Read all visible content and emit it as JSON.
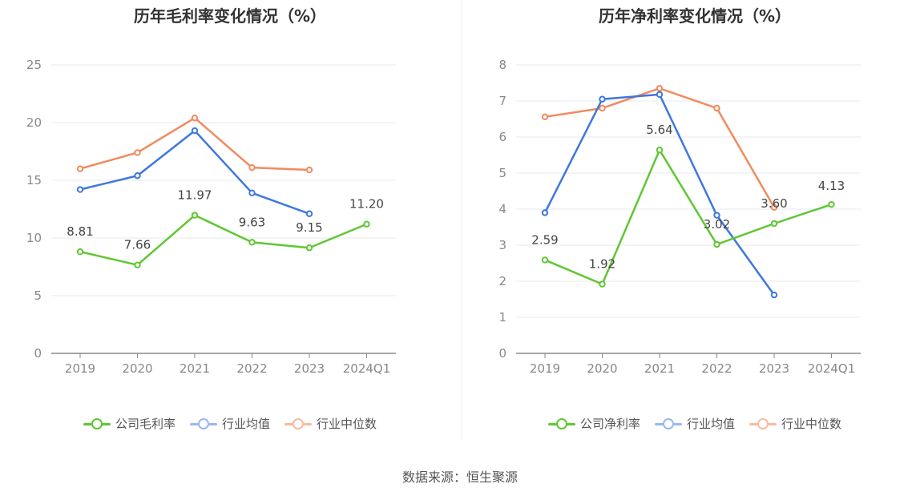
{
  "source": "数据来源：恒生聚源",
  "chart_data": [
    {
      "type": "line",
      "title": "历年毛利率变化情况（%）",
      "categories": [
        "2019",
        "2020",
        "2021",
        "2022",
        "2023",
        "2024Q1"
      ],
      "ylim": [
        0,
        25
      ],
      "yticks": [
        0,
        5,
        10,
        15,
        20,
        25
      ],
      "grid": true,
      "legend": "bottom",
      "series": [
        {
          "name": "公司毛利率",
          "color": "#5fc732",
          "values": [
            8.81,
            7.66,
            11.97,
            9.63,
            9.15,
            11.2
          ],
          "labels": [
            "8.81",
            "7.66",
            "11.97",
            "9.63",
            "9.15",
            "11.20"
          ]
        },
        {
          "name": "行业均值",
          "color": "#3f77e0",
          "values": [
            14.2,
            15.4,
            19.3,
            13.9,
            12.1,
            null
          ]
        },
        {
          "name": "行业中位数",
          "color": "#f28a5e",
          "values": [
            16.0,
            17.4,
            20.4,
            16.1,
            15.9,
            null
          ]
        }
      ]
    },
    {
      "type": "line",
      "title": "历年净利率变化情况（%）",
      "categories": [
        "2019",
        "2020",
        "2021",
        "2022",
        "2023",
        "2024Q1"
      ],
      "ylim": [
        0,
        8
      ],
      "yticks": [
        0,
        1,
        2,
        3,
        4,
        5,
        6,
        7,
        8
      ],
      "grid": true,
      "legend": "bottom",
      "series": [
        {
          "name": "公司净利率",
          "color": "#5fc732",
          "values": [
            2.59,
            1.92,
            5.64,
            3.02,
            3.6,
            4.13
          ],
          "labels": [
            "2.59",
            "1.92",
            "5.64",
            "3.02",
            "3.60",
            "4.13"
          ]
        },
        {
          "name": "行业均值",
          "color": "#3f77e0",
          "values": [
            3.9,
            7.05,
            7.18,
            3.83,
            1.62,
            null
          ]
        },
        {
          "name": "行业中位数",
          "color": "#f28a5e",
          "values": [
            6.56,
            6.8,
            7.35,
            6.8,
            4.05,
            null
          ]
        }
      ]
    }
  ]
}
